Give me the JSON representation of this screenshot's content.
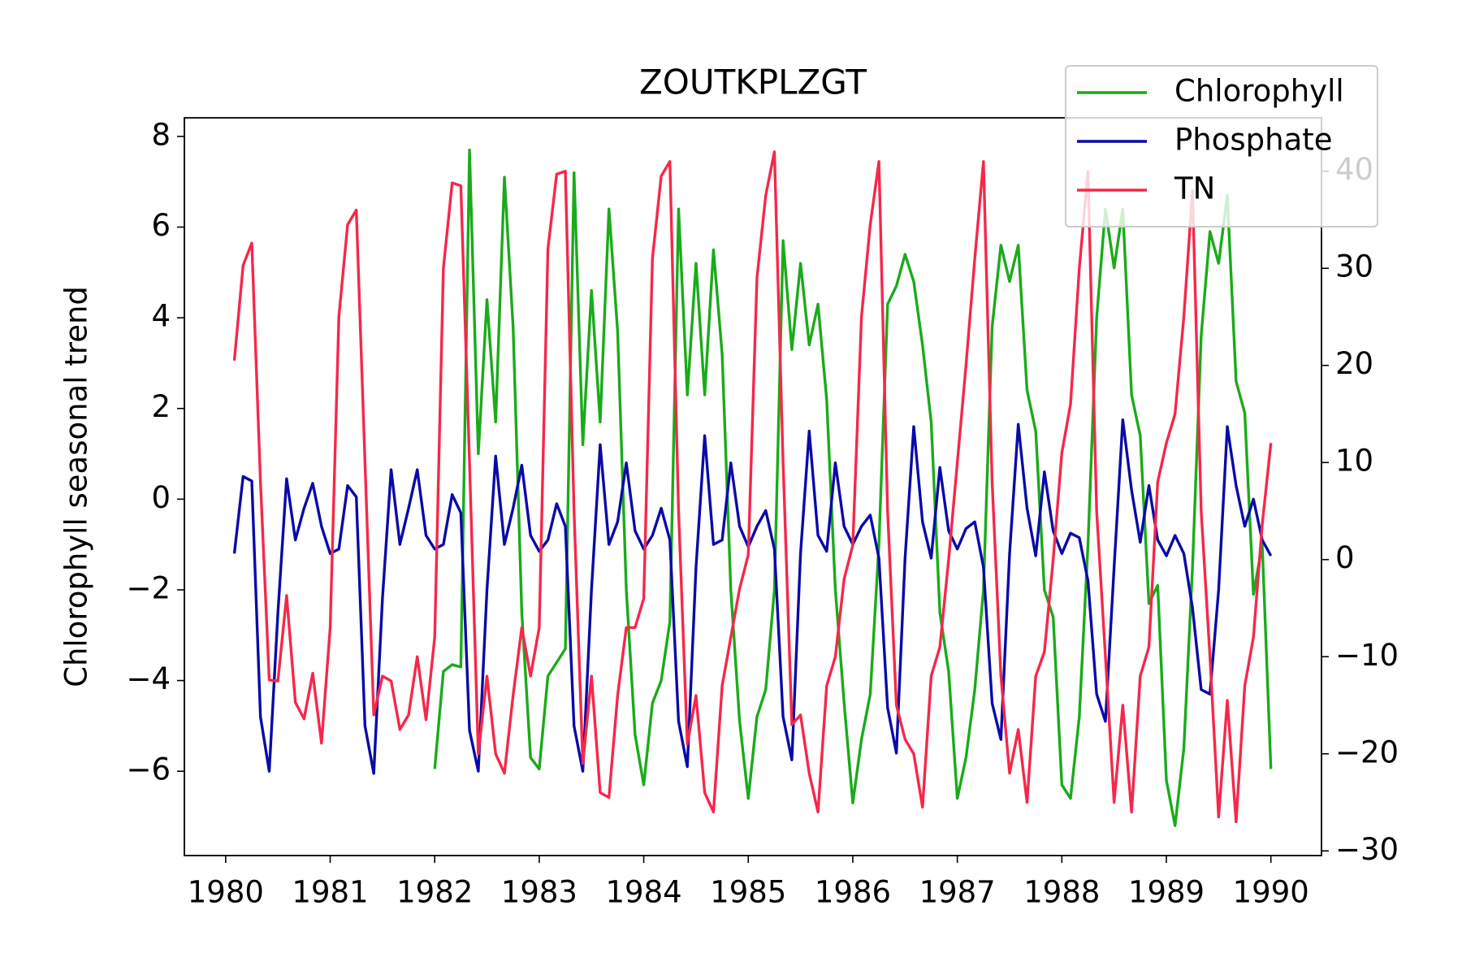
{
  "chart_data": {
    "type": "line",
    "title": "ZOUTKPLZGT",
    "y_label": "Chlorophyll seasonal trend",
    "x": [
      1980.083,
      1980.167,
      1980.25,
      1980.333,
      1980.417,
      1980.5,
      1980.583,
      1980.667,
      1980.75,
      1980.833,
      1980.917,
      1981,
      1981.083,
      1981.167,
      1981.25,
      1981.333,
      1981.417,
      1981.5,
      1981.583,
      1981.667,
      1981.75,
      1981.833,
      1981.917,
      1982,
      1982.083,
      1982.167,
      1982.25,
      1982.333,
      1982.417,
      1982.5,
      1982.583,
      1982.667,
      1982.75,
      1982.833,
      1982.917,
      1983,
      1983.083,
      1983.167,
      1983.25,
      1983.333,
      1983.417,
      1983.5,
      1983.583,
      1983.667,
      1983.75,
      1983.833,
      1983.917,
      1984,
      1984.083,
      1984.167,
      1984.25,
      1984.333,
      1984.417,
      1984.5,
      1984.583,
      1984.667,
      1984.75,
      1984.833,
      1984.917,
      1985,
      1985.083,
      1985.167,
      1985.25,
      1985.333,
      1985.417,
      1985.5,
      1985.583,
      1985.667,
      1985.75,
      1985.833,
      1985.917,
      1986,
      1986.083,
      1986.167,
      1986.25,
      1986.333,
      1986.417,
      1986.5,
      1986.583,
      1986.667,
      1986.75,
      1986.833,
      1986.917,
      1987,
      1987.083,
      1987.167,
      1987.25,
      1987.333,
      1987.417,
      1987.5,
      1987.583,
      1987.667,
      1987.75,
      1987.833,
      1987.917,
      1988,
      1988.083,
      1988.167,
      1988.25,
      1988.333,
      1988.417,
      1988.5,
      1988.583,
      1988.667,
      1988.75,
      1988.833,
      1988.917,
      1989,
      1989.083,
      1989.167,
      1989.25,
      1989.333,
      1989.417,
      1989.5,
      1989.583,
      1989.667,
      1989.75,
      1989.833,
      1989.917,
      1990
    ],
    "series": [
      {
        "name": "Chlorophyll",
        "color": "#1aab1a",
        "axis": "y",
        "values": [
          null,
          null,
          null,
          null,
          null,
          null,
          null,
          null,
          null,
          null,
          null,
          null,
          null,
          null,
          null,
          null,
          null,
          null,
          null,
          null,
          null,
          null,
          null,
          -5.95,
          -3.8,
          -3.65,
          -3.7,
          7.7,
          1,
          4.4,
          1.7,
          7.1,
          3.8,
          -2.5,
          -5.7,
          -5.95,
          -3.9,
          -3.6,
          -3.3,
          7.2,
          1.2,
          4.6,
          1.7,
          6.4,
          3.7,
          -2,
          -5.2,
          -6.3,
          -4.5,
          -4,
          -2.7,
          6.4,
          2.3,
          5.2,
          2.3,
          5.5,
          3.2,
          -2,
          -4.9,
          -6.6,
          -4.8,
          -4.2,
          -2,
          5.7,
          3.3,
          5.2,
          3.4,
          4.3,
          2.2,
          -2,
          -4.5,
          -6.7,
          -5.3,
          -4.3,
          -1,
          4.3,
          4.7,
          5.4,
          4.8,
          3.4,
          1.7,
          -2.5,
          -3.8,
          -6.6,
          -5.7,
          -4.2,
          -2,
          3.8,
          5.6,
          4.8,
          5.6,
          2.4,
          1.5,
          -2,
          -2.6,
          -6.3,
          -6.6,
          -4.8,
          -1,
          4,
          6.4,
          5.1,
          6.4,
          2.3,
          1.4,
          -2.3,
          -1.9,
          -6.2,
          -7.2,
          -5.5,
          -1.5,
          3.6,
          5.9,
          5.2,
          6.7,
          2.6,
          1.9,
          -2.1,
          -1,
          -5.95
        ]
      },
      {
        "name": "Phosphate",
        "color": "#0a0aa8",
        "axis": "y",
        "values": [
          -1.2,
          0.5,
          0.4,
          -4.8,
          -6,
          -2.5,
          0.45,
          -0.9,
          -0.2,
          0.35,
          -0.6,
          -1.2,
          -1.1,
          0.3,
          0.05,
          -5,
          -6.05,
          -2.2,
          0.65,
          -1,
          -0.2,
          0.65,
          -0.8,
          -1.1,
          -1,
          0.1,
          -0.3,
          -5.1,
          -6,
          -2,
          0.95,
          -1,
          -0.2,
          0.75,
          -0.8,
          -1.15,
          -0.9,
          -0.1,
          -0.6,
          -5,
          -6,
          -2,
          1.2,
          -1,
          -0.5,
          0.8,
          -0.7,
          -1.1,
          -0.8,
          -0.2,
          -0.9,
          -4.9,
          -5.9,
          -1.5,
          1.4,
          -1,
          -0.9,
          0.8,
          -0.6,
          -1.05,
          -0.6,
          -0.25,
          -1.1,
          -4.8,
          -5.75,
          -1.2,
          1.5,
          -0.8,
          -1.15,
          0.8,
          -0.6,
          -1,
          -0.6,
          -0.35,
          -1.3,
          -4.6,
          -5.6,
          -1.3,
          1.6,
          -0.5,
          -1.3,
          0.7,
          -0.7,
          -1.1,
          -0.65,
          -0.5,
          -1.5,
          -4.5,
          -5.3,
          -1.2,
          1.65,
          -0.2,
          -1.25,
          0.6,
          -0.7,
          -1.2,
          -0.75,
          -0.85,
          -1.8,
          -4.3,
          -4.9,
          -1.5,
          1.75,
          0.2,
          -0.95,
          0.3,
          -0.9,
          -1.25,
          -0.8,
          -1.2,
          -2.4,
          -4.2,
          -4.3,
          -2,
          1.6,
          0.3,
          -0.6,
          0,
          -0.9,
          -1.25
        ]
      },
      {
        "name": "TN",
        "color": "#f5284a",
        "axis": "y2",
        "values": [
          20.5,
          30.3,
          32.6,
          8,
          -12.4,
          -12.5,
          -3.7,
          -14.7,
          -16.4,
          -11.7,
          -18.9,
          -7,
          25,
          34.5,
          36,
          10,
          -16,
          -12,
          -12.5,
          -17.5,
          -16,
          -10,
          -16.5,
          -8,
          30,
          38.8,
          38.5,
          10,
          -20,
          -12,
          -20,
          -22,
          -14,
          -7,
          -12,
          -7,
          32,
          39.7,
          40,
          5,
          -21,
          -12,
          -24,
          -24.5,
          -14,
          -7,
          -7,
          -4,
          31,
          39.5,
          41,
          5,
          -19,
          -14,
          -24,
          -26,
          -13,
          -8,
          -3,
          0.5,
          29,
          37.5,
          42,
          10,
          -17,
          -16,
          -22,
          -26,
          -13,
          -10,
          -2,
          1.5,
          25,
          34.5,
          41,
          5,
          -15,
          -18.5,
          -20,
          -25.5,
          -12,
          -9,
          0,
          10,
          20,
          31,
          41,
          8,
          -12,
          -22,
          -17.5,
          -25,
          -12,
          -9.5,
          0,
          11,
          16,
          30,
          40,
          5,
          -10,
          -25,
          -15,
          -26,
          -12,
          -9,
          8,
          12,
          15,
          25,
          38,
          5,
          -10,
          -26.5,
          -14.5,
          -27,
          -13,
          -8,
          3.6,
          12
        ]
      }
    ],
    "xlim": [
      1979.605,
      1990.484
    ],
    "xticks": [
      1980,
      1981,
      1982,
      1983,
      1984,
      1985,
      1986,
      1987,
      1988,
      1989,
      1990
    ],
    "ylim": [
      -7.86,
      8.41
    ],
    "yticks": [
      {
        "value": -6,
        "label": "−6"
      },
      {
        "value": -4,
        "label": "−4"
      },
      {
        "value": -2,
        "label": "−2"
      },
      0,
      2,
      4,
      6,
      8
    ],
    "y2lim": [
      -30.48,
      45.5
    ],
    "y2ticks": [
      {
        "value": -30,
        "label": "−30"
      },
      {
        "value": -20,
        "label": "−20"
      },
      {
        "value": -10,
        "label": "−10"
      },
      0,
      10,
      20,
      30,
      40
    ],
    "legend": "upper right"
  }
}
